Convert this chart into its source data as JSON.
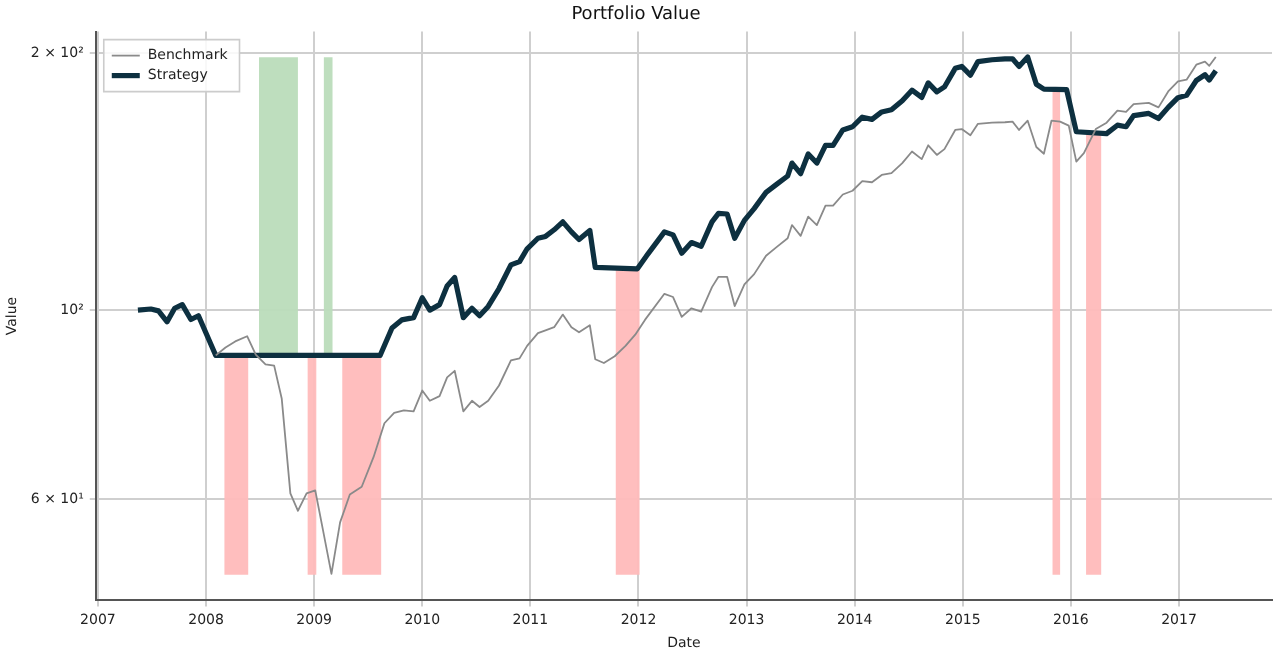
{
  "chart_data": {
    "type": "line",
    "title": "Portfolio Value",
    "xlabel": "Date",
    "ylabel": "Value",
    "xlim": [
      2006.98,
      2017.86
    ],
    "xticks": [
      2007,
      2008,
      2009,
      2010,
      2011,
      2012,
      2013,
      2014,
      2015,
      2016,
      2017
    ],
    "ylim": [
      45.7,
      212
    ],
    "yticks": [
      {
        "value": 60,
        "label": "6 × 10¹"
      },
      {
        "value": 100,
        "label": "10²"
      },
      {
        "value": 200,
        "label": "2 × 10²"
      }
    ],
    "log": "y",
    "grid": true,
    "legend": "top left",
    "marker": "none",
    "line_style": "solid",
    "series": [
      {
        "name": "Benchmark",
        "color": "#8a8a8a",
        "x": [
          2008.09,
          2008.18,
          2008.27,
          2008.38,
          2008.46,
          2008.55,
          2008.63,
          2008.7,
          2008.78,
          2008.85,
          2008.93,
          2009.01,
          2009.08,
          2009.16,
          2009.24,
          2009.33,
          2009.44,
          2009.55,
          2009.65,
          2009.74,
          2009.83,
          2009.92,
          2010,
          2010.07,
          2010.16,
          2010.23,
          2010.3,
          2010.38,
          2010.46,
          2010.53,
          2010.61,
          2010.71,
          2010.82,
          2010.9,
          2010.97,
          2011.07,
          2011.14,
          2011.22,
          2011.3,
          2011.38,
          2011.45,
          2011.55,
          2011.6,
          2011.68,
          2011.78,
          2011.88,
          2011.97,
          2012.06,
          2012.24,
          2012.32,
          2012.4,
          2012.49,
          2012.58,
          2012.68,
          2012.74,
          2012.82,
          2012.89,
          2012.98,
          2013.07,
          2013.18,
          2013.28,
          2013.38,
          2013.42,
          2013.5,
          2013.57,
          2013.65,
          2013.73,
          2013.8,
          2013.89,
          2013.98,
          2014.07,
          2014.16,
          2014.25,
          2014.34,
          2014.44,
          2014.53,
          2014.62,
          2014.68,
          2014.76,
          2014.83,
          2014.93,
          2014.99,
          2015.07,
          2015.14,
          2015.27,
          2015.39,
          2015.46,
          2015.52,
          2015.6,
          2015.68,
          2015.75,
          2015.82,
          2015.9,
          2015.98,
          2016.05,
          2016.12,
          2016.23,
          2016.33,
          2016.43,
          2016.51,
          2016.58,
          2016.72,
          2016.81,
          2016.9,
          2016.99,
          2017.07,
          2017.16,
          2017.24,
          2017.28,
          2017.34
        ],
        "values": [
          88.5,
          90.4,
          91.9,
          93.2,
          88.7,
          86.4,
          86.1,
          78.8,
          61,
          58.2,
          61,
          61.5,
          55.4,
          49.1,
          56.4,
          60.8,
          62.1,
          67.3,
          73.7,
          75.8,
          76.3,
          76.1,
          80.5,
          78.3,
          79.3,
          83.4,
          84.9,
          76.1,
          78.3,
          77,
          78.3,
          81.6,
          87.3,
          87.8,
          90.8,
          94,
          94.7,
          95.5,
          98.8,
          95.5,
          94.2,
          96,
          87.6,
          86.7,
          88.3,
          90.8,
          93.6,
          97.4,
          104.5,
          103.6,
          98.2,
          100.5,
          99.6,
          106.4,
          109.4,
          109.4,
          101.1,
          107.2,
          110.2,
          115.8,
          118.6,
          121.4,
          125.8,
          122.2,
          128.7,
          125.8,
          132.6,
          132.6,
          136.6,
          138,
          141.6,
          141.2,
          144,
          144.7,
          148.7,
          153.4,
          150.3,
          156,
          152,
          154.4,
          162.6,
          163,
          160.3,
          165.3,
          165.8,
          166,
          166.3,
          162.6,
          166.7,
          155.3,
          152.5,
          166.7,
          166.3,
          164.5,
          149.3,
          152.7,
          163,
          165.8,
          171.3,
          170.7,
          174.3,
          174.9,
          172.8,
          180.4,
          185.4,
          186.2,
          193.9,
          195.5,
          193.3,
          198
        ]
      },
      {
        "name": "Strategy",
        "color": "#0d3040",
        "x": [
          2007.37,
          2007.49,
          2007.56,
          2007.64,
          2007.71,
          2007.78,
          2007.86,
          2007.93,
          2008.09,
          2009.61,
          2009.72,
          2009.81,
          2009.92,
          2010,
          2010.07,
          2010.16,
          2010.23,
          2010.3,
          2010.38,
          2010.46,
          2010.53,
          2010.61,
          2010.71,
          2010.82,
          2010.9,
          2010.97,
          2011.07,
          2011.14,
          2011.22,
          2011.3,
          2011.38,
          2011.45,
          2011.55,
          2011.6,
          2011.99,
          2012.08,
          2012.24,
          2012.32,
          2012.4,
          2012.49,
          2012.58,
          2012.68,
          2012.74,
          2012.82,
          2012.89,
          2012.98,
          2013.07,
          2013.18,
          2013.28,
          2013.38,
          2013.42,
          2013.5,
          2013.57,
          2013.65,
          2013.73,
          2013.8,
          2013.89,
          2013.98,
          2014.07,
          2014.16,
          2014.25,
          2014.34,
          2014.44,
          2014.53,
          2014.62,
          2014.68,
          2014.76,
          2014.83,
          2014.93,
          2014.99,
          2015.07,
          2015.14,
          2015.27,
          2015.39,
          2015.46,
          2015.52,
          2015.6,
          2015.68,
          2015.75,
          2015.96,
          2016.05,
          2016.33,
          2016.43,
          2016.51,
          2016.58,
          2016.72,
          2016.81,
          2016.9,
          2016.99,
          2017.07,
          2017.16,
          2017.24,
          2017.28,
          2017.34
        ],
        "values": [
          100,
          100.3,
          99.8,
          96.9,
          100.5,
          101.5,
          97.5,
          98.5,
          88.5,
          88.5,
          95.3,
          97.4,
          98,
          103.4,
          100,
          101.5,
          106.7,
          109.2,
          98,
          100.5,
          98.5,
          101,
          106,
          113,
          114,
          118,
          121.4,
          122,
          124.2,
          126.9,
          123.5,
          121,
          124,
          112.2,
          111.8,
          116,
          123.5,
          122.5,
          116.6,
          120,
          118.8,
          126.9,
          129.8,
          129.6,
          121.4,
          127.4,
          131.5,
          137.4,
          140.5,
          143.6,
          148.7,
          144.5,
          152.4,
          148.7,
          156,
          156,
          162.6,
          164,
          168.3,
          167.3,
          170.7,
          171.7,
          175.9,
          181,
          177.5,
          184.6,
          180.2,
          182.6,
          192,
          193,
          188.5,
          195.5,
          196.5,
          197,
          197,
          193,
          198,
          183.9,
          181.5,
          181.3,
          161.8,
          161,
          164.7,
          164,
          169,
          170,
          167.7,
          172.8,
          177.4,
          178.5,
          185.8,
          188.7,
          186,
          190.7
        ]
      }
    ],
    "bands": [
      {
        "axis": "x",
        "from": 2008.17,
        "to": 2008.39,
        "color": "#ffbbbb"
      },
      {
        "axis": "x",
        "from": 2008.49,
        "to": 2008.85,
        "color": "#badcba"
      },
      {
        "axis": "x",
        "from": 2008.94,
        "to": 2009.02,
        "color": "#ffbbbb"
      },
      {
        "axis": "x",
        "from": 2009.09,
        "to": 2009.17,
        "color": "#badcba"
      },
      {
        "axis": "x",
        "from": 2009.26,
        "to": 2009.62,
        "color": "#ffbbbb"
      },
      {
        "axis": "x",
        "from": 2011.79,
        "to": 2012.01,
        "color": "#ffbbbb"
      },
      {
        "axis": "x",
        "from": 2015.83,
        "to": 2015.9,
        "color": "#ffbbbb"
      },
      {
        "axis": "x",
        "from": 2016.14,
        "to": 2016.28,
        "color": "#ffbbbb"
      }
    ]
  }
}
